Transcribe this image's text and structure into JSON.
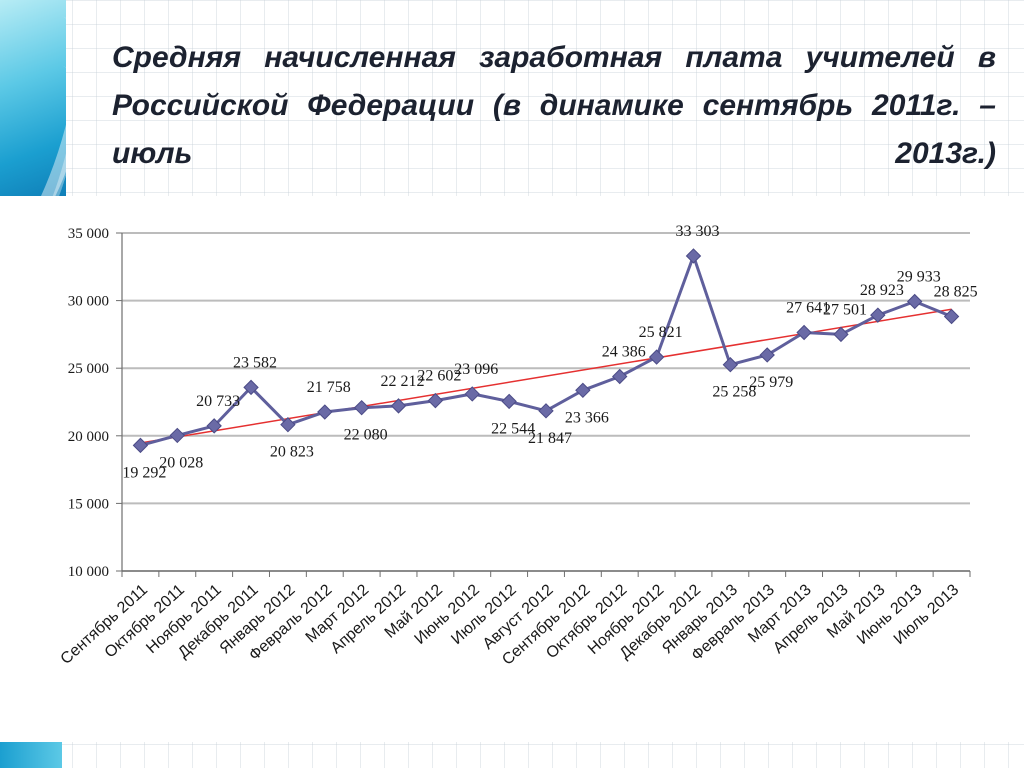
{
  "title": "Средняя начисленная заработная плата учителей в Российской Федерации (в динамике сентябрь 2011г. – июль 2013г.)",
  "colors": {
    "series_line": "#5f5f9c",
    "series_marker": "#6a6aa6",
    "trend_line": "#e53030",
    "grid": "#bcbcbc"
  },
  "chart_data": {
    "type": "line",
    "categories": [
      "Сентябрь 2011",
      "Октябрь 2011",
      "Ноябрь 2011",
      "Декабрь 2011",
      "Январь 2012",
      "Февраль 2012",
      "Март 2012",
      "Апрель 2012",
      "Май 2012",
      "Июнь 2012",
      "Июль 2012",
      "Август 2012",
      "Сентябрь 2012",
      "Октябрь 2012",
      "Ноябрь 2012",
      "Декабрь 2012",
      "Январь 2013",
      "Февраль 2013",
      "Март 2013",
      "Апрель 2013",
      "Май 2013",
      "Июнь 2013",
      "Июль 2013"
    ],
    "values": [
      19292,
      20028,
      20733,
      23582,
      20823,
      21758,
      22080,
      22212,
      22602,
      23096,
      22544,
      21847,
      23366,
      24386,
      25821,
      33303,
      25258,
      25979,
      27641,
      27501,
      28923,
      29933,
      28825
    ],
    "data_labels": [
      "19 292",
      "20 028",
      "20 733",
      "23 582",
      "20 823",
      "21 758",
      "22 080",
      "22 212",
      "22 602",
      "23 096",
      "22 544",
      "21 847",
      "23 366",
      "24 386",
      "25 821",
      "33 303",
      "25 258",
      "25 979",
      "27 641",
      "27 501",
      "28 923",
      "29 933",
      "28 825"
    ],
    "label_position": [
      "below",
      "below",
      "above",
      "above",
      "below",
      "above",
      "below",
      "above",
      "above",
      "above",
      "below",
      "below",
      "below",
      "above",
      "above",
      "above",
      "below",
      "below",
      "above",
      "above",
      "above",
      "above",
      "above"
    ],
    "yticks": [
      10000,
      15000,
      20000,
      25000,
      30000,
      35000
    ],
    "ytick_labels": [
      "10 000",
      "15 000",
      "20 000",
      "25 000",
      "30 000",
      "35 000"
    ],
    "ylim": [
      10000,
      35000
    ],
    "trendline": "linear",
    "grid": "horizontal",
    "marker": "diamond",
    "xlabel": "",
    "ylabel": ""
  }
}
